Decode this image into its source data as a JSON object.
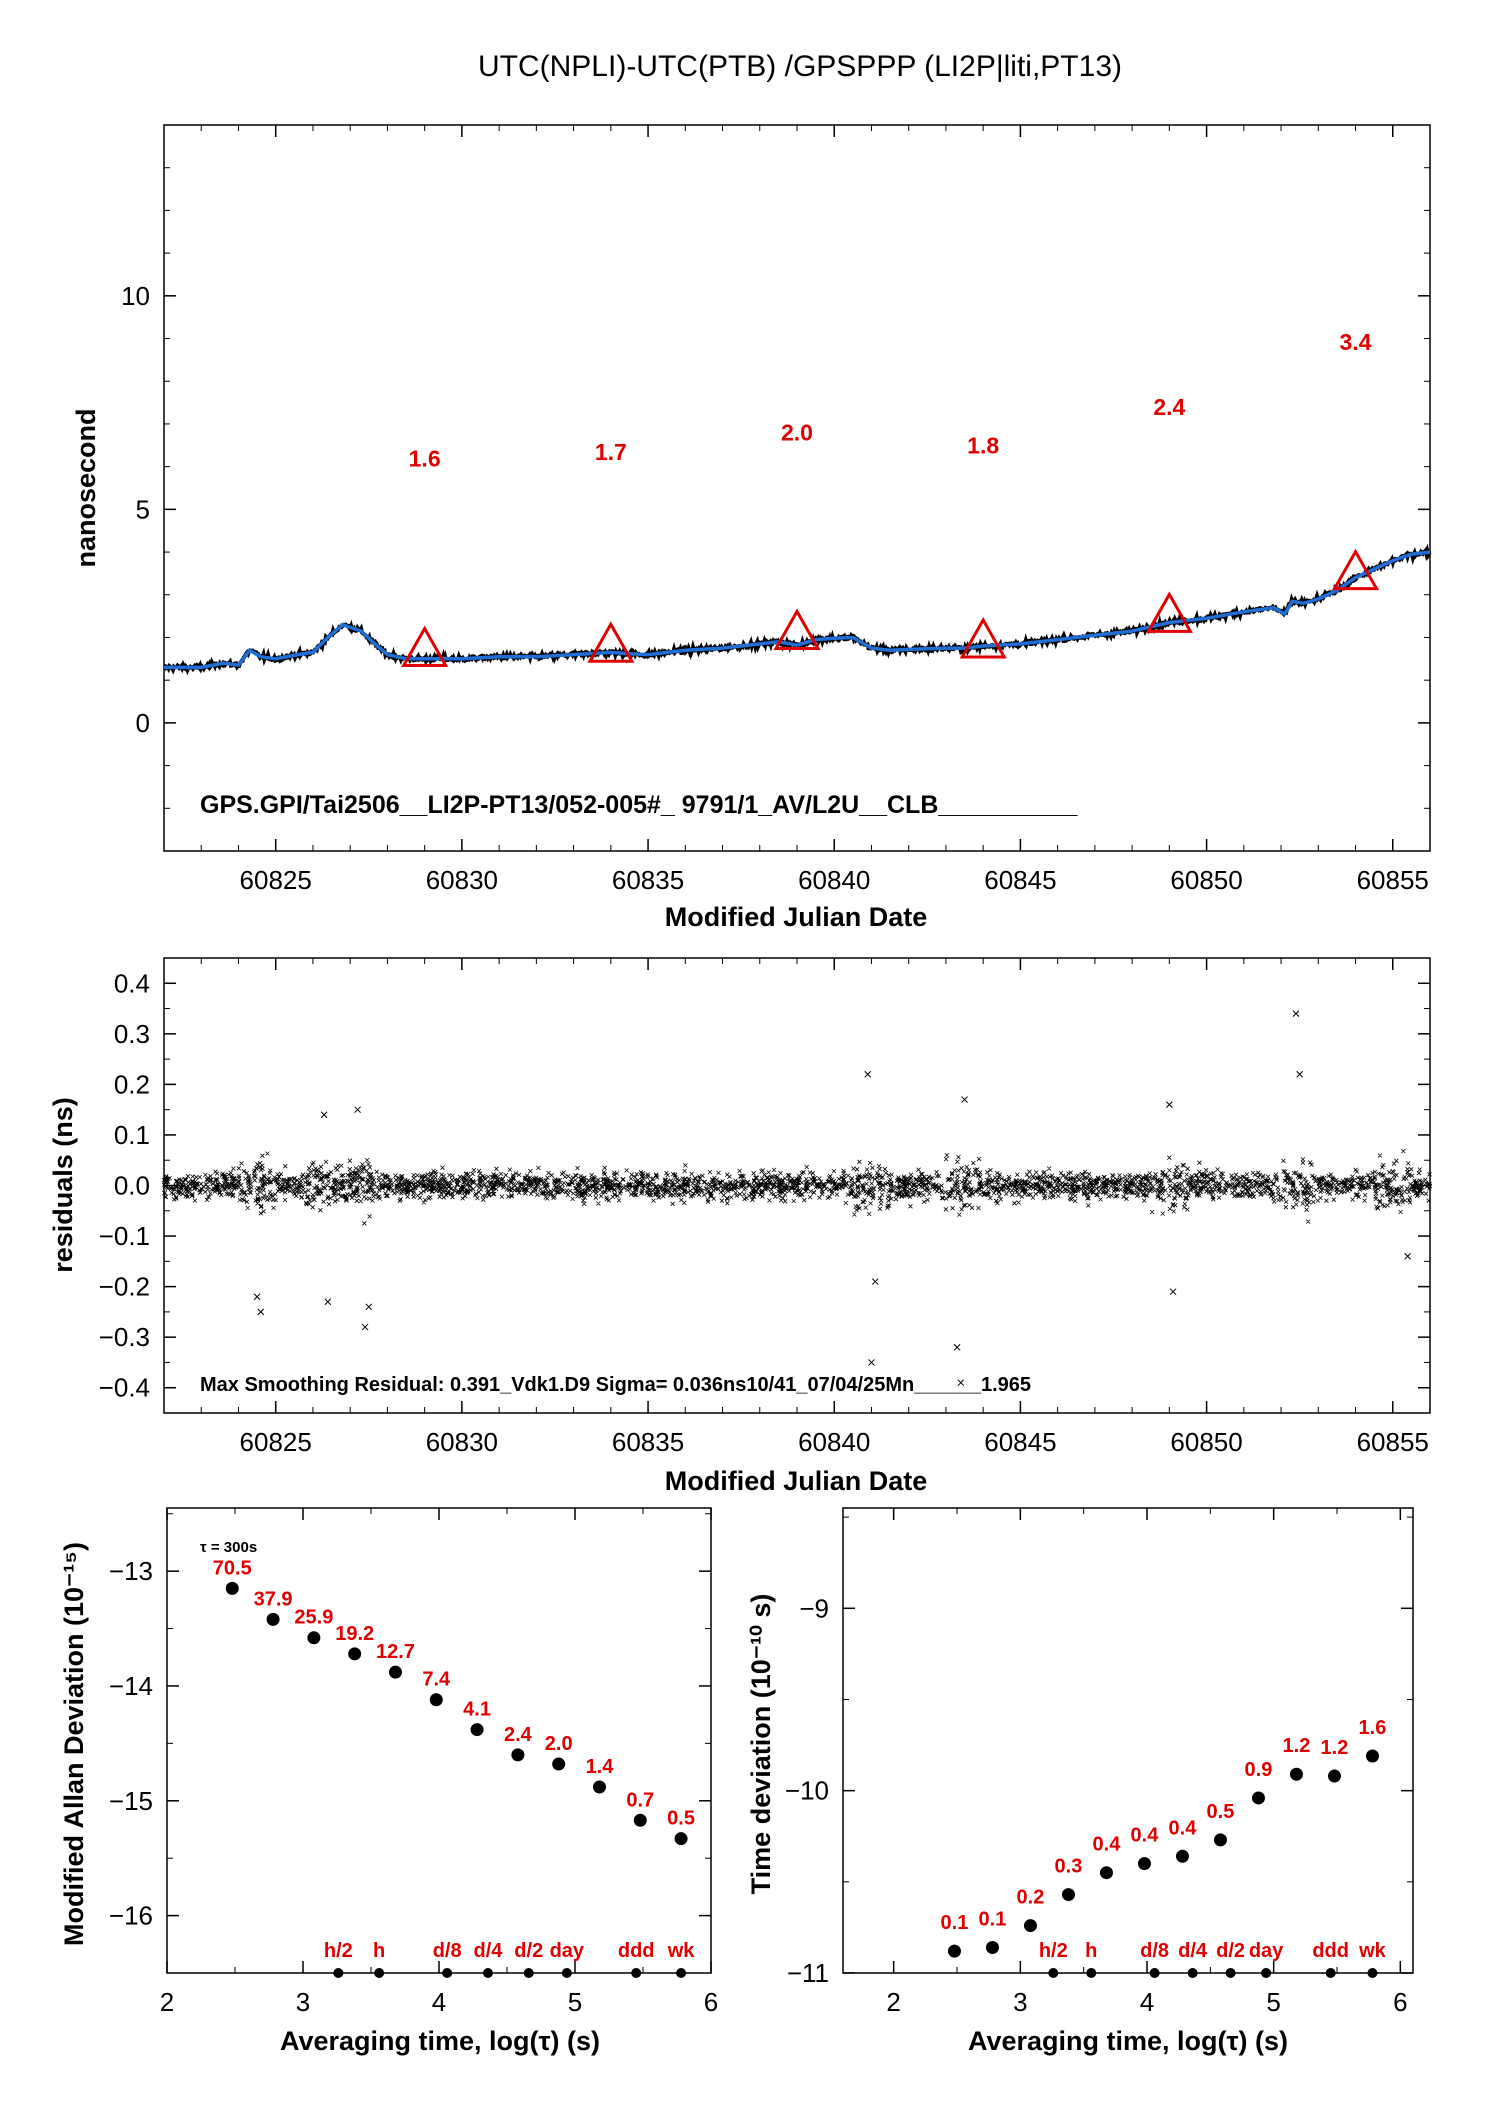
{
  "figure_title": "UTC(NPLI)-UTC(PTB)  /GPSPPP  (LI2P|liti,PT13)",
  "colors": {
    "trace": "#1f6fd6",
    "raw": "#000000",
    "marker": "#e00000",
    "label": "#e00000"
  },
  "chart_data": [
    {
      "id": "top",
      "type": "line",
      "ylabel": "nanosecond",
      "xlabel": "Modified Julian Date",
      "xlim": [
        60822,
        60856
      ],
      "ylim": [
        -3,
        14
      ],
      "xticks": [
        60825,
        60830,
        60835,
        60840,
        60845,
        60850,
        60855
      ],
      "yticks": [
        0,
        5,
        10
      ],
      "series": [
        {
          "role": "smoothed",
          "x": [
            60822,
            60823,
            60823.6,
            60824,
            60824.3,
            60824.6,
            60825,
            60825.6,
            60826,
            60826.4,
            60826.8,
            60827.3,
            60827.6,
            60828,
            60828.5,
            60829,
            60829.5,
            60830,
            60831,
            60832,
            60833,
            60834,
            60834.5,
            60835,
            60836,
            60837,
            60838,
            60838.5,
            60839,
            60839.5,
            60840,
            60840.5,
            60841,
            60841.5,
            60842,
            60843,
            60843.5,
            60844,
            60845,
            60846,
            60847,
            60848,
            60849,
            60850,
            60851,
            60851.8,
            60852.1,
            60852.3,
            60852.6,
            60853,
            60853.5,
            60854,
            60854.5,
            60855,
            60855.5,
            60856
          ],
          "y": [
            1.3,
            1.3,
            1.4,
            1.35,
            1.7,
            1.55,
            1.5,
            1.6,
            1.65,
            2.0,
            2.3,
            2.15,
            1.9,
            1.6,
            1.5,
            1.5,
            1.5,
            1.5,
            1.55,
            1.55,
            1.6,
            1.65,
            1.62,
            1.6,
            1.7,
            1.75,
            1.85,
            1.9,
            1.82,
            1.95,
            1.98,
            2.0,
            1.75,
            1.7,
            1.72,
            1.75,
            1.75,
            1.8,
            1.85,
            1.95,
            2.05,
            2.15,
            2.35,
            2.45,
            2.6,
            2.7,
            2.55,
            2.85,
            2.8,
            2.9,
            3.1,
            3.4,
            3.6,
            3.8,
            3.95,
            4.0
          ]
        }
      ],
      "markers": {
        "x": [
          60829,
          60834,
          60839,
          60844,
          60849,
          60854
        ],
        "y": [
          1.6,
          1.7,
          2.0,
          1.8,
          2.4,
          3.4
        ],
        "labels": [
          "1.6",
          "1.7",
          "2.0",
          "1.8",
          "2.4",
          "3.4"
        ]
      },
      "annotation": "GPS.GPI/Tai2506__LI2P-PT13/052-005#_  9791/1_AV/L2U__CLB__________"
    },
    {
      "id": "residuals",
      "type": "scatter",
      "ylabel": "residuals (ns)",
      "xlabel": "Modified Julian Date",
      "xlim": [
        60822,
        60856
      ],
      "ylim": [
        -0.45,
        0.45
      ],
      "xticks": [
        60825,
        60830,
        60835,
        60840,
        60845,
        60850,
        60855
      ],
      "yticks": [
        -0.4,
        -0.3,
        -0.2,
        -0.1,
        0.0,
        0.1,
        0.2,
        0.3,
        0.4
      ],
      "ytick_labels": [
        "−0.4",
        "−0.3",
        "−0.2",
        "−0.1",
        "0.0",
        "0.1",
        "0.2",
        "0.3",
        "0.4"
      ],
      "outliers": {
        "x": [
          60824.5,
          60824.6,
          60826.3,
          60826.4,
          60827.2,
          60827.4,
          60827.5,
          60840.9,
          60841.0,
          60841.1,
          60843.3,
          60843.4,
          60843.5,
          60849.0,
          60849.1,
          60852.4,
          60852.5,
          60855.4
        ],
        "y": [
          -0.22,
          -0.25,
          0.14,
          -0.23,
          0.15,
          -0.28,
          -0.24,
          0.22,
          -0.35,
          -0.19,
          -0.32,
          -0.39,
          0.17,
          0.16,
          -0.21,
          0.34,
          0.22,
          -0.14
        ]
      },
      "annotation": "Max Smoothing Residual: 0.391_Vdk1.D9  Sigma= 0.036ns10/41_07/04/25Mn______1.965"
    },
    {
      "id": "mdev",
      "type": "scatter",
      "ylabel": "Modified Allan Deviation (10⁻¹⁵)",
      "xlabel": "Averaging time, log(τ) (s)",
      "xlim": [
        2,
        6
      ],
      "ylim": [
        -16.5,
        -12.45
      ],
      "xticks": [
        2,
        3,
        4,
        5,
        6
      ],
      "yticks": [
        -16,
        -15,
        -14,
        -13
      ],
      "ytick_labels": [
        "−16",
        "−15",
        "−14",
        "−13"
      ],
      "tau0_label": "τ = 300s",
      "x": [
        2.48,
        2.78,
        3.08,
        3.38,
        3.68,
        3.98,
        4.28,
        4.58,
        4.88,
        5.18,
        5.48,
        5.78
      ],
      "y": [
        -13.15,
        -13.42,
        -13.58,
        -13.72,
        -13.88,
        -14.12,
        -14.38,
        -14.6,
        -14.68,
        -14.88,
        -15.17,
        -15.33
      ],
      "labels": [
        "70.5",
        "37.9",
        "25.9",
        "19.2",
        "12.7",
        "7.4",
        "4.1",
        "2.4",
        "2.0",
        "1.4",
        "0.7",
        "0.5"
      ],
      "time_marks": {
        "x": [
          3.26,
          3.56,
          4.06,
          4.36,
          4.66,
          4.94,
          5.45,
          5.78
        ],
        "labels": [
          "h/2",
          "h",
          "d/8",
          "d/4",
          "d/2",
          "day",
          "ddd",
          "wk"
        ]
      }
    },
    {
      "id": "tdev",
      "type": "scatter",
      "ylabel": "Time deviation (10⁻¹⁰ s)",
      "xlabel": "Averaging time, log(τ) (s)",
      "xlim": [
        1.6,
        6.1
      ],
      "ylim": [
        -11,
        -8.45
      ],
      "xticks": [
        2,
        3,
        4,
        5,
        6
      ],
      "yticks": [
        -11,
        -10,
        -9
      ],
      "ytick_labels": [
        "−11",
        "−10",
        "−9"
      ],
      "x": [
        2.48,
        2.78,
        3.08,
        3.38,
        3.68,
        3.98,
        4.28,
        4.58,
        4.88,
        5.18,
        5.48,
        5.78
      ],
      "y": [
        -10.88,
        -10.86,
        -10.74,
        -10.57,
        -10.45,
        -10.4,
        -10.36,
        -10.27,
        -10.04,
        -9.91,
        -9.92,
        -9.81
      ],
      "labels": [
        "0.1",
        "0.1",
        "0.2",
        "0.3",
        "0.4",
        "0.4",
        "0.4",
        "0.5",
        "0.9",
        "1.2",
        "1.2",
        "1.6"
      ],
      "time_marks": {
        "x": [
          3.26,
          3.56,
          4.06,
          4.36,
          4.66,
          4.94,
          5.45,
          5.78
        ],
        "labels": [
          "h/2",
          "h",
          "d/8",
          "d/4",
          "d/2",
          "day",
          "ddd",
          "wk"
        ]
      }
    }
  ]
}
